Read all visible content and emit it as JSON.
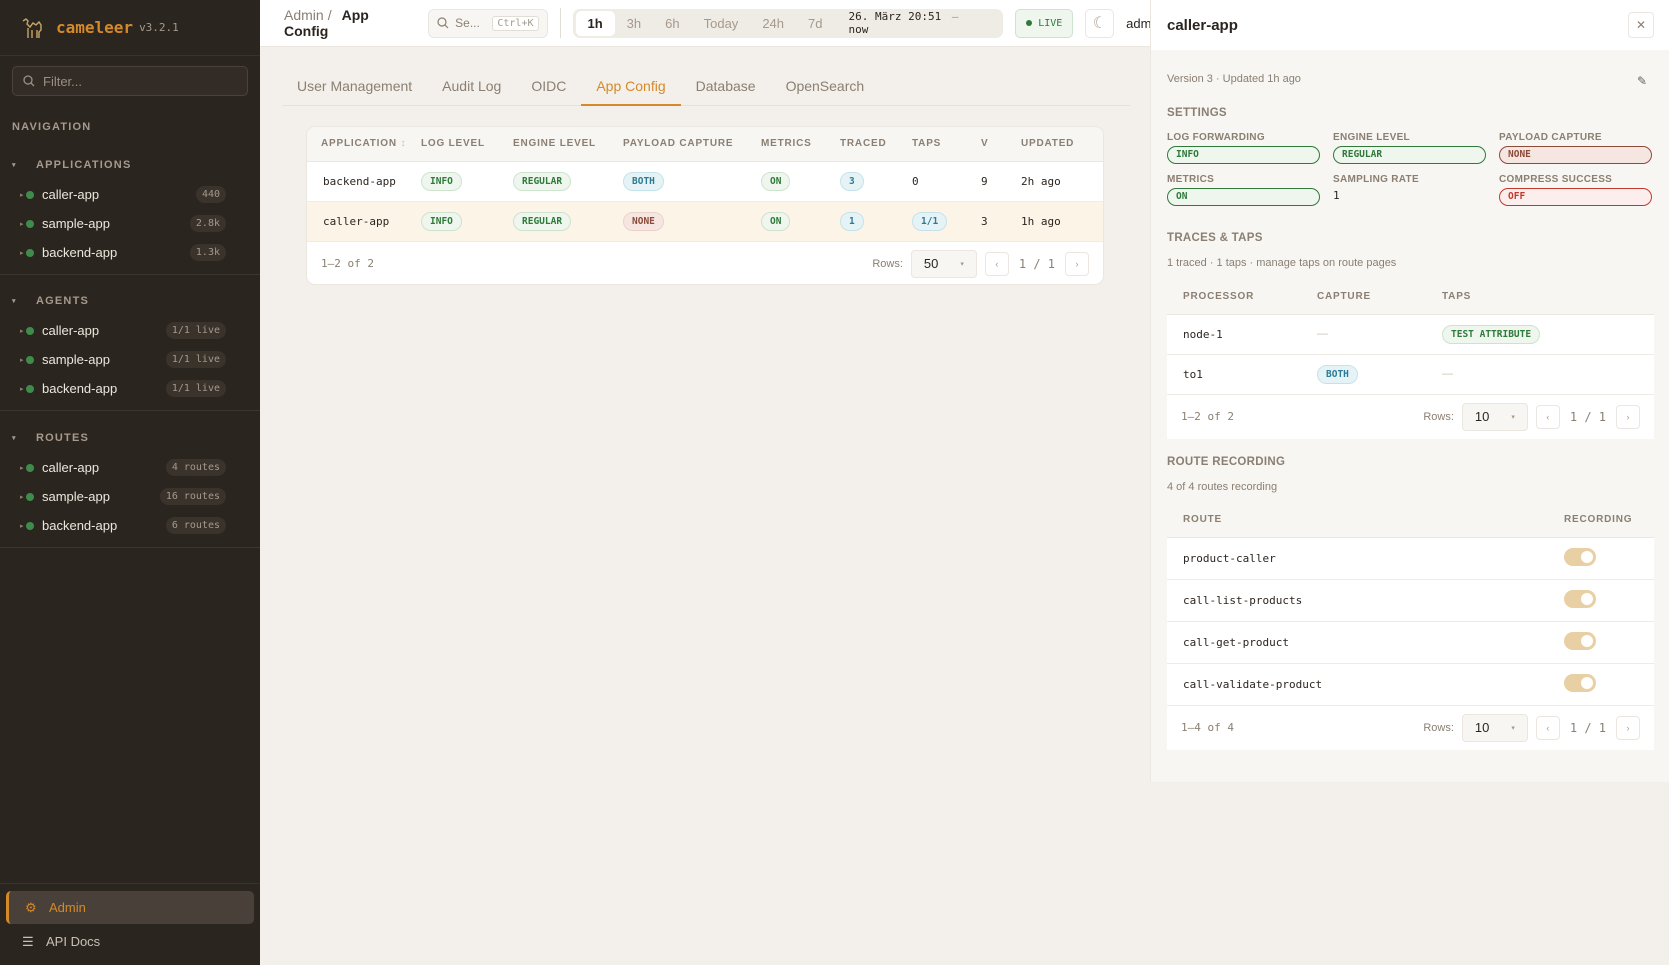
{
  "app": {
    "name": "cameleer",
    "version": "v3.2.1"
  },
  "sidebar": {
    "filter_placeholder": "Filter...",
    "nav_label": "NAVIGATION",
    "sections": [
      {
        "title": "APPLICATIONS",
        "items": [
          {
            "label": "caller-app",
            "badge": "440"
          },
          {
            "label": "sample-app",
            "badge": "2.8k"
          },
          {
            "label": "backend-app",
            "badge": "1.3k"
          }
        ]
      },
      {
        "title": "AGENTS",
        "items": [
          {
            "label": "caller-app",
            "badge": "1/1 live"
          },
          {
            "label": "sample-app",
            "badge": "1/1 live"
          },
          {
            "label": "backend-app",
            "badge": "1/1 live"
          }
        ]
      },
      {
        "title": "ROUTES",
        "items": [
          {
            "label": "caller-app",
            "badge": "4 routes"
          },
          {
            "label": "sample-app",
            "badge": "16 routes"
          },
          {
            "label": "backend-app",
            "badge": "6 routes"
          }
        ]
      }
    ],
    "admin": "Admin",
    "api_docs": "API Docs"
  },
  "header": {
    "breadcrumb": [
      "Admin",
      "App Config"
    ],
    "search_placeholder": "Se...",
    "search_shortcut": "Ctrl+K",
    "ranges": [
      "1h",
      "3h",
      "6h",
      "Today",
      "24h",
      "7d"
    ],
    "active_range": "1h",
    "date_range": "26. März 20:51",
    "date_sep": "—",
    "date_end": "now",
    "live": "LIVE",
    "user": "admin"
  },
  "tabs": [
    "User Management",
    "Audit Log",
    "OIDC",
    "App Config",
    "Database",
    "OpenSearch"
  ],
  "active_tab": "App Config",
  "table": {
    "columns": [
      "APPLICATION",
      "LOG LEVEL",
      "ENGINE LEVEL",
      "PAYLOAD CAPTURE",
      "METRICS",
      "TRACED",
      "TAPS",
      "V",
      "UPDATED"
    ],
    "rows": [
      {
        "app": "backend-app",
        "log": "INFO",
        "engine": "REGULAR",
        "payload": "BOTH",
        "metrics": "ON",
        "traced": "3",
        "taps": "0",
        "v": "9",
        "updated": "2h ago"
      },
      {
        "app": "caller-app",
        "log": "INFO",
        "engine": "REGULAR",
        "payload": "NONE",
        "metrics": "ON",
        "traced": "1",
        "taps": "1/1",
        "v": "3",
        "updated": "1h ago"
      }
    ],
    "summary": "1–2 of 2",
    "rows_label": "Rows:",
    "rows_value": "50",
    "page": "1 / 1"
  },
  "panel": {
    "title": "caller-app",
    "meta": "Version 3 · Updated 1h ago",
    "settings_title": "SETTINGS",
    "settings": {
      "log_forwarding_label": "LOG FORWARDING",
      "log_forwarding": "INFO",
      "engine_level_label": "ENGINE LEVEL",
      "engine_level": "REGULAR",
      "payload_capture_label": "PAYLOAD CAPTURE",
      "payload_capture": "NONE",
      "metrics_label": "METRICS",
      "metrics": "ON",
      "sampling_rate_label": "SAMPLING RATE",
      "sampling_rate": "1",
      "compress_success_label": "COMPRESS SUCCESS",
      "compress_success": "OFF"
    },
    "traces_title": "TRACES & TAPS",
    "traces_sub": "1 traced · 1 taps · manage taps on route pages",
    "traces": {
      "columns": [
        "PROCESSOR",
        "CAPTURE",
        "TAPS"
      ],
      "rows": [
        {
          "processor": "node-1",
          "capture": "—",
          "taps": "TEST ATTRIBUTE"
        },
        {
          "processor": "to1",
          "capture": "BOTH",
          "taps": "—"
        }
      ],
      "summary": "1–2 of 2",
      "rows_label": "Rows:",
      "rows_value": "10",
      "page": "1 / 1"
    },
    "routes_title": "ROUTE RECORDING",
    "routes_sub": "4 of 4 routes recording",
    "routes": {
      "columns": [
        "ROUTE",
        "RECORDING"
      ],
      "rows": [
        {
          "route": "product-caller",
          "recording": true
        },
        {
          "route": "call-list-products",
          "recording": true
        },
        {
          "route": "call-get-product",
          "recording": true
        },
        {
          "route": "call-validate-product",
          "recording": true
        }
      ],
      "summary": "1–4 of 4",
      "rows_label": "Rows:",
      "rows_value": "10",
      "page": "1 / 1"
    }
  }
}
